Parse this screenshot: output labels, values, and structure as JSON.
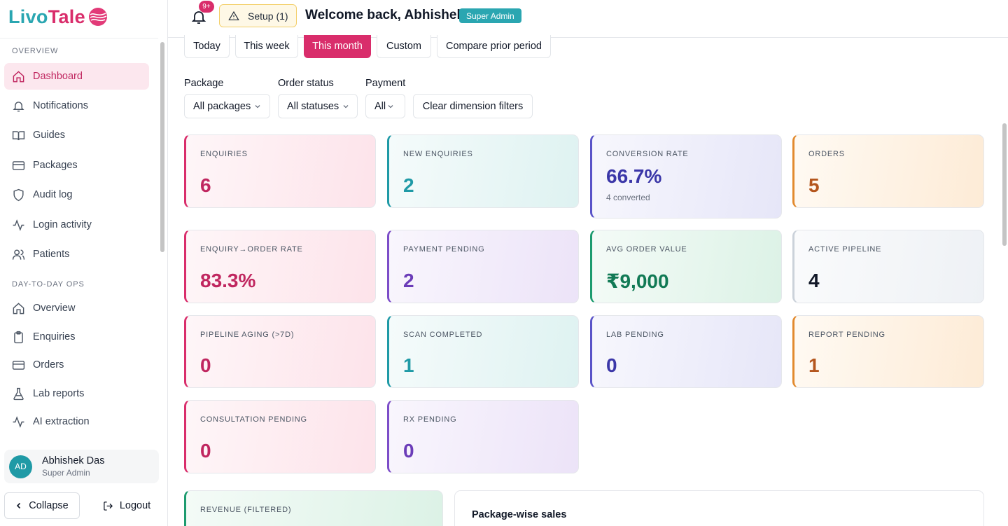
{
  "brand": {
    "name_part1": "Livo",
    "name_part2": "Tale"
  },
  "sidebar": {
    "sections": [
      {
        "label": "OVERVIEW"
      },
      {
        "label": "DAY-TO-DAY OPS"
      }
    ],
    "items": [
      {
        "label": "Dashboard",
        "icon": "home-icon",
        "active": true
      },
      {
        "label": "Notifications",
        "icon": "bell-icon"
      },
      {
        "label": "Guides",
        "icon": "book-icon"
      },
      {
        "label": "Packages",
        "icon": "card-icon"
      },
      {
        "label": "Audit log",
        "icon": "shield-icon"
      },
      {
        "label": "Login activity",
        "icon": "activity-icon"
      },
      {
        "label": "Patients",
        "icon": "users-icon"
      },
      {
        "label": "Overview",
        "icon": "home-icon"
      },
      {
        "label": "Enquiries",
        "icon": "clipboard-icon"
      },
      {
        "label": "Orders",
        "icon": "card-icon"
      },
      {
        "label": "Lab reports",
        "icon": "flask-icon"
      },
      {
        "label": "AI extraction",
        "icon": "activity-icon"
      }
    ],
    "user": {
      "initials": "AD",
      "name": "Abhishek Das",
      "role": "Super Admin"
    },
    "collapse_label": "Collapse",
    "logout_label": "Logout"
  },
  "header": {
    "notif_badge": "9+",
    "setup_label": "Setup (1)",
    "welcome": "Welcome back, Abhishek",
    "role_badge": "Super Admin"
  },
  "periods": [
    {
      "label": "Today",
      "active": false
    },
    {
      "label": "This week",
      "active": false
    },
    {
      "label": "This month",
      "active": true
    },
    {
      "label": "Custom",
      "active": false
    },
    {
      "label": "Compare prior period",
      "active": false
    }
  ],
  "filters": {
    "package": {
      "label": "Package",
      "value": "All packages"
    },
    "order_status": {
      "label": "Order status",
      "value": "All statuses"
    },
    "payment": {
      "label": "Payment",
      "value": "All"
    },
    "clear_label": "Clear dimension filters"
  },
  "metrics": [
    {
      "label": "ENQUIRIES",
      "value": "6"
    },
    {
      "label": "NEW ENQUIRIES",
      "value": "2"
    },
    {
      "label": "CONVERSION RATE",
      "value": "66.7%",
      "sub": "4 converted"
    },
    {
      "label": "ORDERS",
      "value": "5"
    },
    {
      "label": "ENQUIRY→ORDER RATE",
      "value": "83.3%"
    },
    {
      "label": "PAYMENT PENDING",
      "value": "2"
    },
    {
      "label": "AVG ORDER VALUE",
      "value": "₹9,000"
    },
    {
      "label": "ACTIVE PIPELINE",
      "value": "4"
    },
    {
      "label": "PIPELINE AGING (>7D)",
      "value": "0"
    },
    {
      "label": "SCAN COMPLETED",
      "value": "1"
    },
    {
      "label": "LAB PENDING",
      "value": "0"
    },
    {
      "label": "REPORT PENDING",
      "value": "1"
    },
    {
      "label": "CONSULTATION PENDING",
      "value": "0"
    },
    {
      "label": "RX PENDING",
      "value": "0"
    },
    {
      "label": "REVENUE (FILTERED)",
      "value": ""
    }
  ],
  "panels": {
    "package_sales_title": "Package-wise sales"
  },
  "colors": {
    "brand_pink": "#d92d6b",
    "brand_teal": "#2aa6b1"
  }
}
